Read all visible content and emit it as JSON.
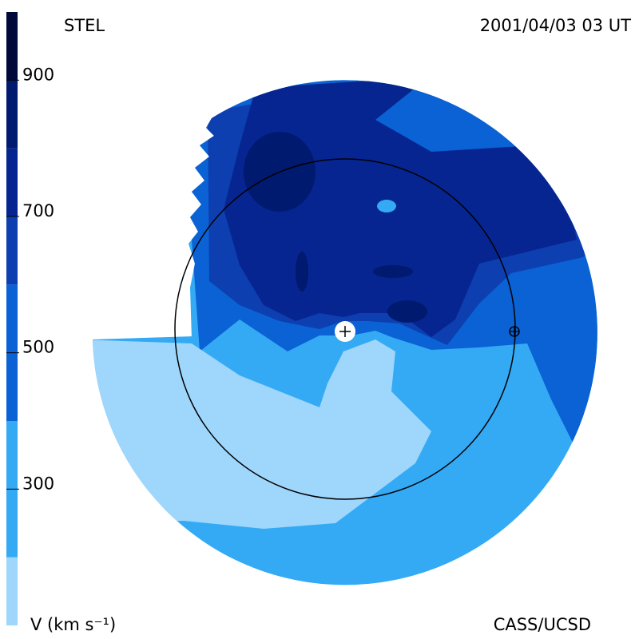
{
  "labels": {
    "top_left": "STEL",
    "top_right": "2001/04/03 03 UT",
    "bottom_left": "V (km s⁻¹)",
    "bottom_right": "CASS/UCSD"
  },
  "colorbar": {
    "bins": [
      100,
      200,
      400,
      600,
      700,
      800,
      900,
      1000
    ],
    "colors": [
      "#9fd6fb",
      "#34aaf5",
      "#0a62d4",
      "#0d3fb0",
      "#062590",
      "#001a70",
      "#000a3a"
    ],
    "ylim": [
      100,
      1000
    ],
    "yticks": [
      300,
      500,
      700,
      900
    ]
  }
}
